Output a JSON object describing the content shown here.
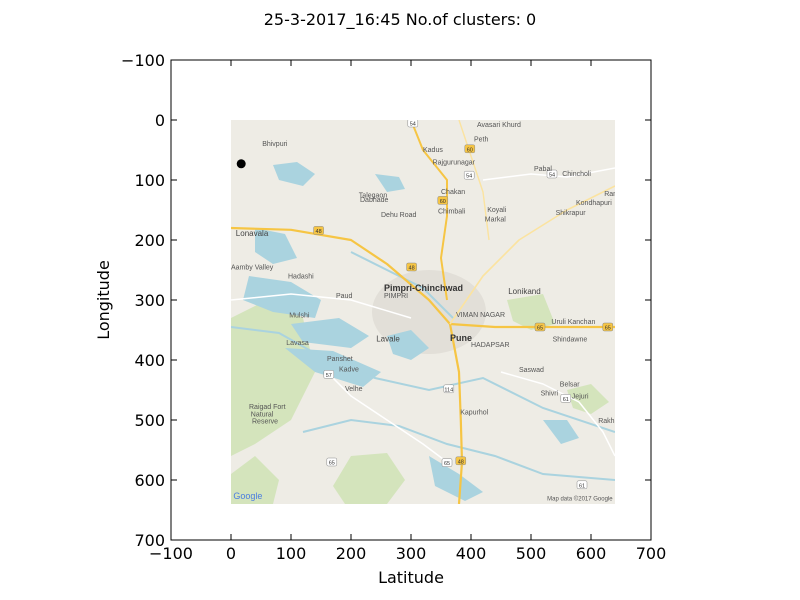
{
  "chart_data": {
    "type": "scatter",
    "title": "25-3-2017_16:45 No.of clusters: 0",
    "xlabel": "Latitude",
    "ylabel": "Longitude",
    "xlim": [
      -100,
      700
    ],
    "ylim": [
      700,
      -100
    ],
    "y_inverted": true,
    "x_ticks": [
      -100,
      0,
      100,
      200,
      300,
      400,
      500,
      600,
      700
    ],
    "x_tick_labels": [
      "−100",
      "0",
      "100",
      "200",
      "300",
      "400",
      "500",
      "600",
      "700"
    ],
    "y_ticks": [
      -100,
      0,
      100,
      200,
      300,
      400,
      500,
      600,
      700
    ],
    "y_tick_labels": [
      "−100",
      "0",
      "100",
      "200",
      "300",
      "400",
      "500",
      "600",
      "700"
    ],
    "grid": false,
    "background_image": {
      "extent_x": [
        0,
        640
      ],
      "extent_y": [
        0,
        640
      ],
      "map_credit": "Map data ©2017 Google",
      "logo": "Google"
    },
    "points": [
      {
        "x": 17,
        "y": 73
      }
    ],
    "point_color": "#000000"
  },
  "map": {
    "cities_big": [
      {
        "name": "Pimpri-Chinchwad",
        "x": 255,
        "y": 285
      },
      {
        "name": "Pune",
        "x": 365,
        "y": 368
      }
    ],
    "cities_mid": [
      {
        "name": "Lonavala",
        "x": 8,
        "y": 193
      },
      {
        "name": "Lavale",
        "x": 242,
        "y": 369
      },
      {
        "name": "Lonikand",
        "x": 462,
        "y": 290
      }
    ],
    "places": [
      {
        "name": "Avasari Khurd",
        "x": 410,
        "y": 12
      },
      {
        "name": "Peth",
        "x": 405,
        "y": 36
      },
      {
        "name": "Bhivpuri",
        "x": 52,
        "y": 43
      },
      {
        "name": "Kadus",
        "x": 320,
        "y": 53
      },
      {
        "name": "Rajgurunagar",
        "x": 336,
        "y": 74
      },
      {
        "name": "Pabal",
        "x": 505,
        "y": 85
      },
      {
        "name": "Chincholi",
        "x": 552,
        "y": 93
      },
      {
        "name": "Talegaon",
        "x": 213,
        "y": 129
      },
      {
        "name": "Dabhade",
        "x": 215,
        "y": 137
      },
      {
        "name": "Chakan",
        "x": 350,
        "y": 123
      },
      {
        "name": "Ran",
        "x": 622,
        "y": 127
      },
      {
        "name": "Kondhapuri",
        "x": 575,
        "y": 142
      },
      {
        "name": "Chimbali",
        "x": 345,
        "y": 156
      },
      {
        "name": "Koyali",
        "x": 427,
        "y": 153
      },
      {
        "name": "Dehu Road",
        "x": 250,
        "y": 162
      },
      {
        "name": "Markal",
        "x": 423,
        "y": 169
      },
      {
        "name": "Shikrapur",
        "x": 541,
        "y": 158
      },
      {
        "name": "Aamby Valley",
        "x": 0,
        "y": 249
      },
      {
        "name": "Hadashi",
        "x": 95,
        "y": 264
      },
      {
        "name": "Paud",
        "x": 175,
        "y": 297
      },
      {
        "name": "Mulshi",
        "x": 97,
        "y": 329
      },
      {
        "name": "Uruli Kanchan",
        "x": 534,
        "y": 340
      },
      {
        "name": "Lavasa",
        "x": 92,
        "y": 375
      },
      {
        "name": "Shindawne",
        "x": 536,
        "y": 369
      },
      {
        "name": "Panshet",
        "x": 160,
        "y": 402
      },
      {
        "name": "Kadve",
        "x": 180,
        "y": 419
      },
      {
        "name": "Saswad",
        "x": 480,
        "y": 420
      },
      {
        "name": "Velhe",
        "x": 190,
        "y": 452
      },
      {
        "name": "Belsar",
        "x": 548,
        "y": 444
      },
      {
        "name": "Shivri",
        "x": 516,
        "y": 459
      },
      {
        "name": "Jejuri",
        "x": 568,
        "y": 464
      },
      {
        "name": "Kapurhol",
        "x": 382,
        "y": 491
      },
      {
        "name": "Raigad Fort",
        "x": 30,
        "y": 482
      },
      {
        "name": "Natural",
        "x": 33,
        "y": 494
      },
      {
        "name": "Reserve",
        "x": 35,
        "y": 506
      },
      {
        "name": "Rakh",
        "x": 612,
        "y": 505
      },
      {
        "name": "PIMPRI",
        "x": 255,
        "y": 297
      },
      {
        "name": "VIMAN NAGAR",
        "x": 375,
        "y": 328
      },
      {
        "name": "HADAPSAR",
        "x": 400,
        "y": 378
      }
    ],
    "shields": [
      {
        "label": "54",
        "x": 303,
        "y": 5,
        "color": "#ffffff"
      },
      {
        "label": "60",
        "x": 398,
        "y": 48,
        "color": "#f6c544"
      },
      {
        "label": "54",
        "x": 397,
        "y": 92,
        "color": "#ffffff"
      },
      {
        "label": "54",
        "x": 535,
        "y": 90,
        "color": "#ffffff"
      },
      {
        "label": "48",
        "x": 146,
        "y": 184,
        "color": "#f6c544"
      },
      {
        "label": "60",
        "x": 353,
        "y": 134,
        "color": "#f6c544"
      },
      {
        "label": "48",
        "x": 301,
        "y": 245,
        "color": "#f6c544"
      },
      {
        "label": "65",
        "x": 515,
        "y": 345,
        "color": "#f6c544"
      },
      {
        "label": "65",
        "x": 628,
        "y": 345,
        "color": "#f6c544"
      },
      {
        "label": "57",
        "x": 163,
        "y": 424,
        "color": "#ffffff"
      },
      {
        "label": "114",
        "x": 363,
        "y": 448,
        "color": "#ffffff"
      },
      {
        "label": "61",
        "x": 558,
        "y": 464,
        "color": "#ffffff"
      },
      {
        "label": "65",
        "x": 168,
        "y": 570,
        "color": "#ffffff"
      },
      {
        "label": "65",
        "x": 360,
        "y": 571,
        "color": "#ffffff"
      },
      {
        "label": "48",
        "x": 383,
        "y": 568,
        "color": "#f6c544"
      },
      {
        "label": "61",
        "x": 585,
        "y": 608,
        "color": "#ffffff"
      }
    ]
  }
}
